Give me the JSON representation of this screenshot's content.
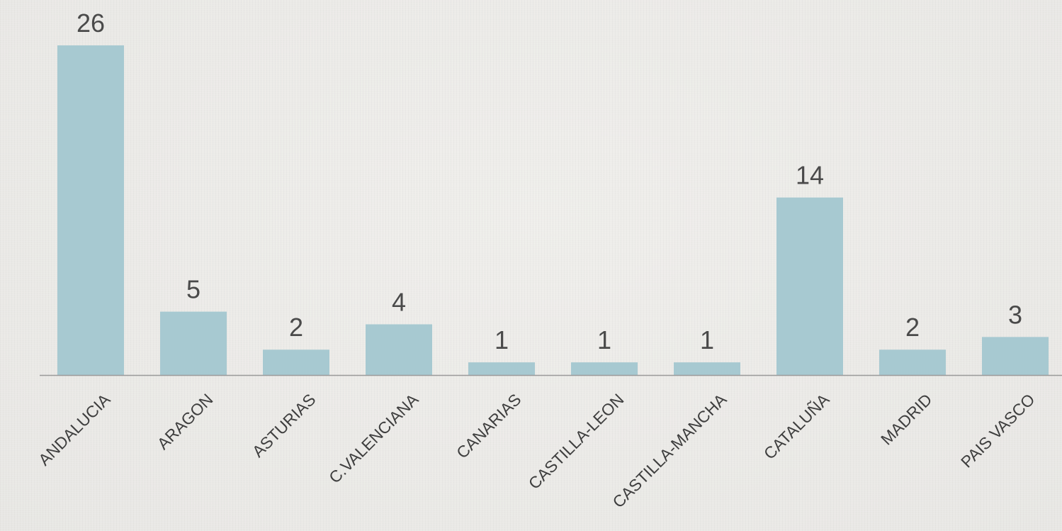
{
  "chart_data": {
    "type": "bar",
    "categories": [
      "ANDALUCIA",
      "ARAGON",
      "ASTURIAS",
      "C.VALENCIANA",
      "CANARIAS",
      "CASTILLA-LEON",
      "CASTILLA-MANCHA",
      "CATALUÑA",
      "MADRID",
      "PAIS VASCO"
    ],
    "values": [
      26,
      5,
      2,
      4,
      1,
      1,
      1,
      14,
      2,
      3
    ],
    "data_labels": [
      "26",
      "5",
      "2",
      "4",
      "1",
      "1",
      "1",
      "14",
      "2",
      "3"
    ],
    "title": "",
    "xlabel": "",
    "ylabel": "",
    "ylim": [
      0,
      26
    ],
    "grid": false,
    "legend": "none",
    "colors": {
      "bar": "#a7c9d1",
      "axis": "#9a9a9a",
      "value_text": "#4a4a4a",
      "label_text": "#3e3e3e"
    }
  }
}
